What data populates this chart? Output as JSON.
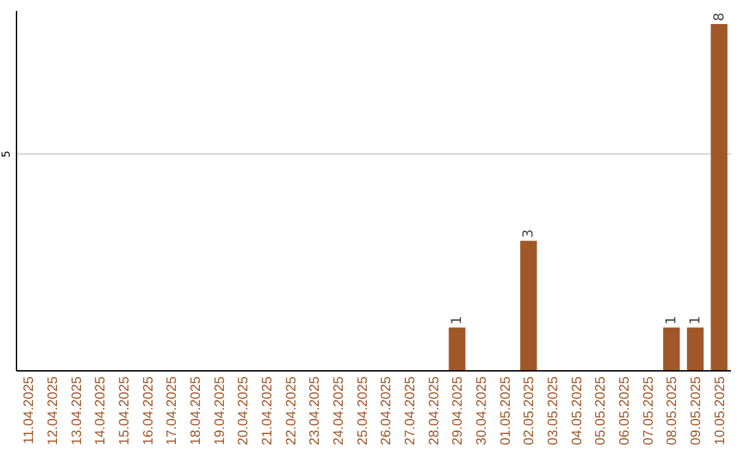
{
  "chart_data": {
    "type": "bar",
    "categories": [
      "11.04.2025",
      "12.04.2025",
      "13.04.2025",
      "14.04.2025",
      "15.04.2025",
      "16.04.2025",
      "17.04.2025",
      "18.04.2025",
      "19.04.2025",
      "20.04.2025",
      "21.04.2025",
      "22.04.2025",
      "23.04.2025",
      "24.04.2025",
      "25.04.2025",
      "26.04.2025",
      "27.04.2025",
      "28.04.2025",
      "29.04.2025",
      "30.04.2025",
      "01.05.2025",
      "02.05.2025",
      "03.05.2025",
      "04.05.2025",
      "05.05.2025",
      "06.05.2025",
      "07.05.2025",
      "08.05.2025",
      "09.05.2025",
      "10.05.2025"
    ],
    "values": [
      null,
      null,
      null,
      null,
      null,
      null,
      null,
      null,
      null,
      null,
      null,
      null,
      null,
      null,
      null,
      null,
      null,
      null,
      1,
      null,
      null,
      3,
      null,
      null,
      null,
      null,
      null,
      1,
      1,
      8
    ],
    "data_labels": true,
    "color": "#a0582a",
    "ylim": [
      0,
      8.3
    ],
    "yticks": [
      5
    ],
    "grid": "y"
  }
}
